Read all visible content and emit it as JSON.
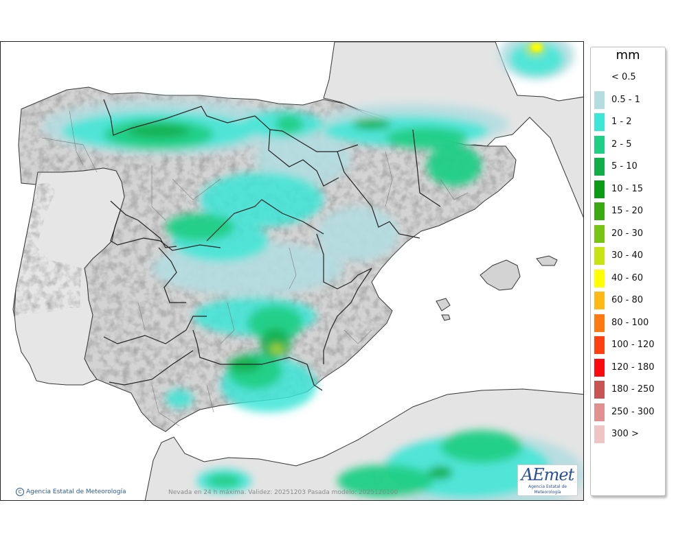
{
  "credit_left": "Agencia Estatal de Meteorología",
  "credit_center": "Nevada en 24 h máxima. Validez: 20251203 Pasada modelo: 2025120100",
  "logo": {
    "word": "AEmet",
    "subtitle": "Agencia Estatal de Meteorología"
  },
  "legend": {
    "unit": "mm",
    "items": [
      {
        "label": "< 0.5",
        "color": ""
      },
      {
        "label": "0.5 - 1",
        "color": "#b4dde1"
      },
      {
        "label": "1 - 2",
        "color": "#3ee6d6"
      },
      {
        "label": "2 - 5",
        "color": "#1fcf86"
      },
      {
        "label": "5 - 10",
        "color": "#12ae4a"
      },
      {
        "label": "10 - 15",
        "color": "#0b9a16"
      },
      {
        "label": "15 - 20",
        "color": "#3aaa12"
      },
      {
        "label": "20 - 30",
        "color": "#78c412"
      },
      {
        "label": "30 - 40",
        "color": "#c6e413"
      },
      {
        "label": "40 - 60",
        "color": "#ffff00"
      },
      {
        "label": "60 - 80",
        "color": "#ffb816"
      },
      {
        "label": "80 - 100",
        "color": "#ff7a12"
      },
      {
        "label": "100 - 120",
        "color": "#ff4012"
      },
      {
        "label": "120 - 180",
        "color": "#ff0810"
      },
      {
        "label": "180 - 250",
        "color": "#c85454"
      },
      {
        "label": "250 - 300",
        "color": "#e09090"
      },
      {
        "label": "300 >",
        "color": "#efc4c4"
      }
    ]
  },
  "colors": {
    "sea": "#ffffff",
    "land": "#d3d3d3",
    "foreign_land": "#e4e4e4"
  },
  "icons": {
    "credit": "copyright-icon",
    "logo": "aemet-logo"
  }
}
